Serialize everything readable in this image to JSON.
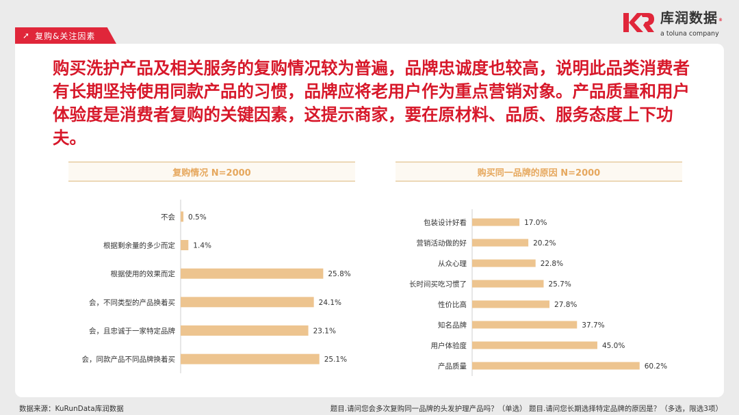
{
  "header": {
    "section_tab": "复购&关注因素",
    "brand_cn": "库润数据",
    "brand_en": "a toluna company"
  },
  "headline": "购买洗护产品及相关服务的复购情况较为普遍，品牌忠诚度也较高，说明此品类消费者有长期坚持使用同款产品的习惯，品牌应将老用户作为重点营销对象。产品质量和用户体验度是消费者复购的关键因素，这提示商家，要在原材料、品质、服务态度上下功夫。",
  "colors": {
    "accent_red": "#e0263a",
    "bar": "#edc48f",
    "title_text": "#e6a85e"
  },
  "chart_data": [
    {
      "type": "bar",
      "orientation": "horizontal",
      "title": "复购情况 N=2000",
      "categories": [
        "不会",
        "根据剩余量的多少而定",
        "根据使用的效果而定",
        "会，不同类型的产品换着买",
        "会，且忠诚于一家特定品牌",
        "会，同款产品不同品牌换着买"
      ],
      "values": [
        0.5,
        1.4,
        25.8,
        24.1,
        23.1,
        25.1
      ],
      "labels": [
        "0.5%",
        "1.4%",
        "25.8%",
        "24.1%",
        "23.1%",
        "25.1%"
      ],
      "xlim": [
        0,
        26
      ]
    },
    {
      "type": "bar",
      "orientation": "horizontal",
      "title": "购买同一品牌的原因 N=2000",
      "categories": [
        "包装设计好看",
        "营销活动做的好",
        "从众心理",
        "长时间买吃习惯了",
        "性价比高",
        "知名品牌",
        "用户体验度",
        "产品质量"
      ],
      "values": [
        17.0,
        20.2,
        22.8,
        25.7,
        27.8,
        37.7,
        45.0,
        60.2
      ],
      "labels": [
        "17.0%",
        "20.2%",
        "22.8%",
        "25.7%",
        "27.8%",
        "37.7%",
        "45.0%",
        "60.2%"
      ],
      "xlim": [
        0,
        61
      ]
    }
  ],
  "footer": {
    "source": "数据来源：KuRunData库润数据",
    "questions": "题目.请问您会多次复购同一品牌的头发护理产品吗？（单选） 题目.请问您长期选择特定品牌的原因是？（多选，限选3项）"
  }
}
